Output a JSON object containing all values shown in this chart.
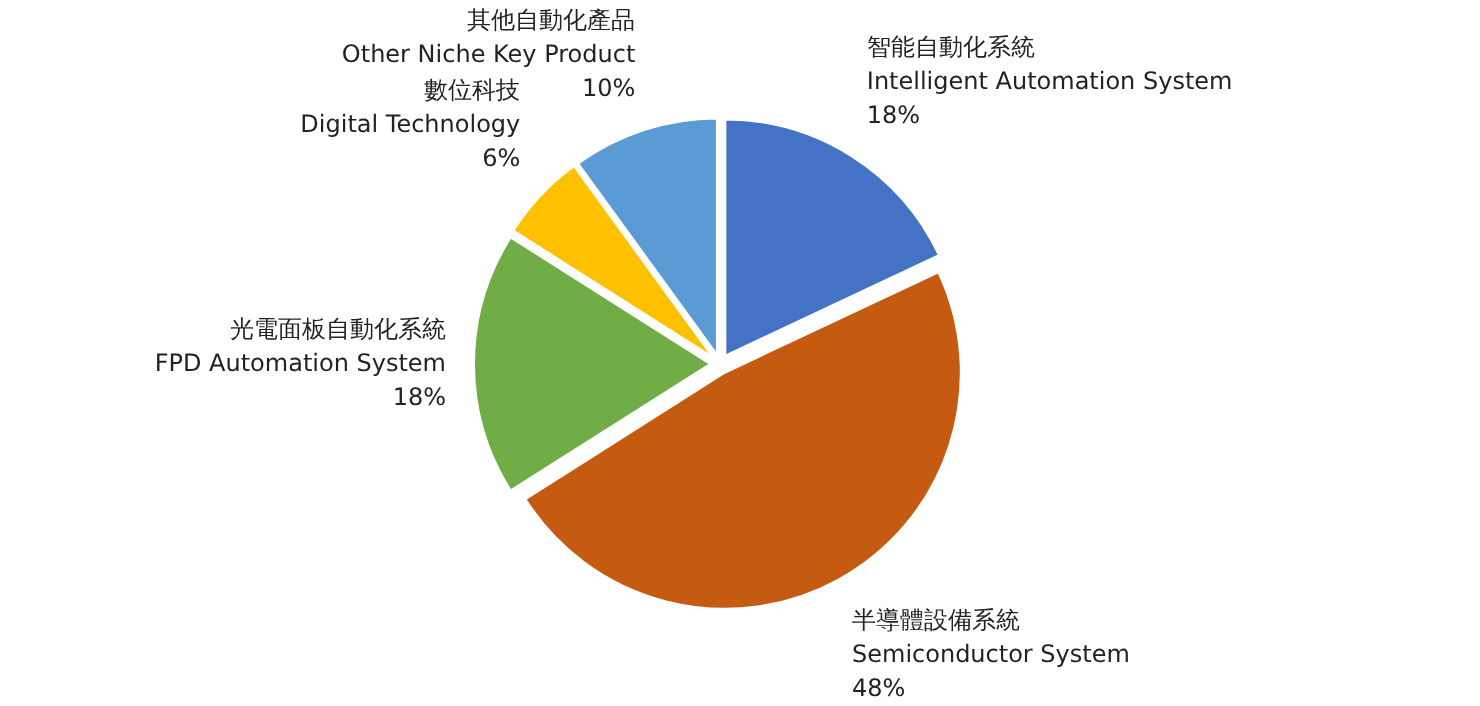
{
  "chart_data": {
    "type": "pie",
    "categories": [
      "智能自動化系統\nIntelligent Automation System",
      "半導體設備系統\nSemiconductor System",
      "光電面板自動化系統\nFPD Automation System",
      "數位科技\nDigital Technology",
      "其他自動化產品\nOther Niche Key Product"
    ],
    "values": [
      18,
      48,
      18,
      6,
      10
    ],
    "colors": [
      "#4472c4",
      "#c55a11",
      "#70ad47",
      "#ffc000",
      "#5b9bd5"
    ],
    "value_labels": [
      "18%",
      "48%",
      "18%",
      "6%",
      "10%"
    ]
  }
}
